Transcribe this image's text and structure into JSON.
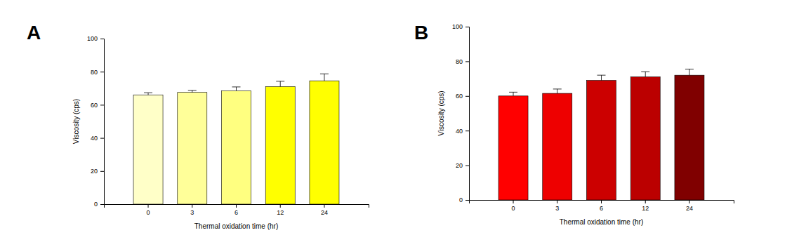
{
  "chart_data": [
    {
      "type": "bar",
      "title": "A",
      "categories": [
        "0",
        "3",
        "6",
        "12",
        "24"
      ],
      "values": [
        66,
        67.5,
        68.5,
        71,
        74.5
      ],
      "errors": [
        1.3,
        1.2,
        2.3,
        3.2,
        4.2
      ],
      "colors": [
        "#ffffc8",
        "#ffff99",
        "#ffff80",
        "#ffff00",
        "#ffff00"
      ],
      "x_label": "Thermal oxidation time (hr)",
      "y_label": "Viscosity (cps)",
      "ylim": [
        0,
        100
      ],
      "yticks": [
        0,
        20,
        40,
        60,
        80,
        100
      ]
    },
    {
      "type": "bar",
      "title": "B",
      "categories": [
        "0",
        "3",
        "6",
        "12",
        "24"
      ],
      "values": [
        60,
        61.5,
        69,
        71,
        72
      ],
      "errors": [
        2.2,
        2.5,
        3,
        3,
        3.5
      ],
      "colors": [
        "#ff0000",
        "#ee0000",
        "#cc0000",
        "#bb0000",
        "#800000"
      ],
      "x_label": "Thermal oxidation time (hr)",
      "y_label": "Viscosity (cps)",
      "ylim": [
        0,
        100
      ],
      "yticks": [
        0,
        20,
        40,
        60,
        80,
        100
      ]
    }
  ]
}
